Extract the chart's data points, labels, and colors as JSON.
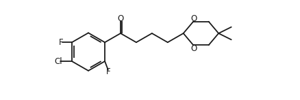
{
  "bg_color": "#ffffff",
  "line_color": "#1a1a1a",
  "line_width": 1.3,
  "font_size": 8.5,
  "figsize": [
    4.38,
    1.47
  ],
  "dpi": 100,
  "xlim": [
    -0.5,
    11.0
  ],
  "ylim": [
    0.0,
    5.5
  ]
}
